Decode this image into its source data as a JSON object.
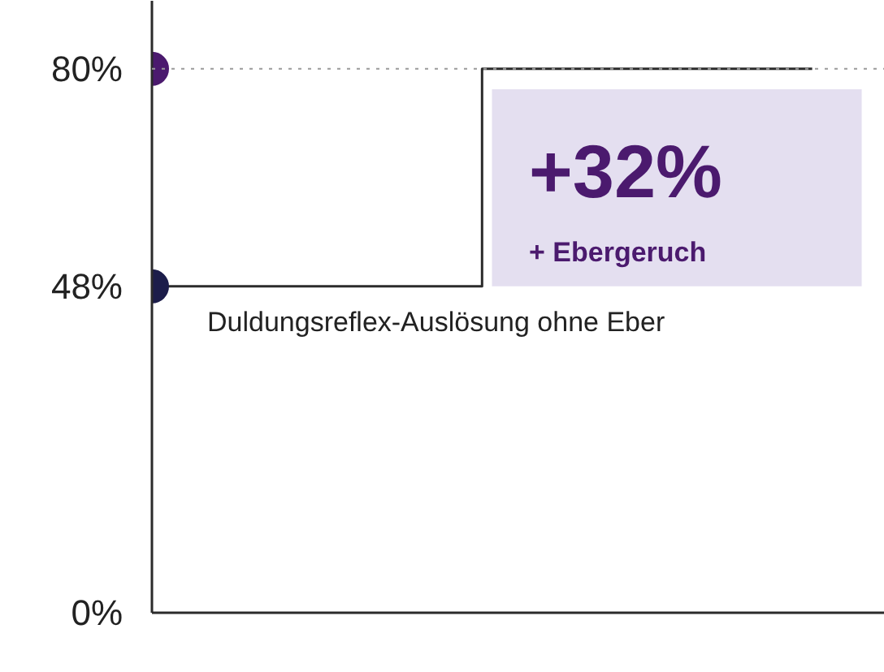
{
  "chart_data": {
    "type": "step",
    "categories": [
      null,
      null,
      null
    ],
    "ylim": [
      0,
      90
    ],
    "yticks": [
      {
        "value": 0,
        "label": "0%"
      },
      {
        "value": 48,
        "label": "48%"
      },
      {
        "value": 80,
        "label": "80%"
      }
    ],
    "tick_labels": "y",
    "grid": false,
    "series": [
      {
        "color": "#2b2b2b",
        "values": [
          48,
          80,
          80
        ]
      },
      {
        "type": "scatter",
        "color": "#1c1d4a",
        "values": [
          48,
          null,
          null
        ],
        "marker": "circle"
      },
      {
        "type": "scatter",
        "color": "#4b1a6e",
        "values": [
          80,
          null,
          null
        ],
        "marker": "circle"
      }
    ],
    "ref_lines": [
      {
        "axis": "y",
        "value": 80,
        "color": "#9a9a9a",
        "line_style": "dotted"
      }
    ],
    "annotations": [
      "+32%",
      "+ Ebergeruch",
      "Duldungsreflex-Auslösung ohne Eber"
    ]
  }
}
